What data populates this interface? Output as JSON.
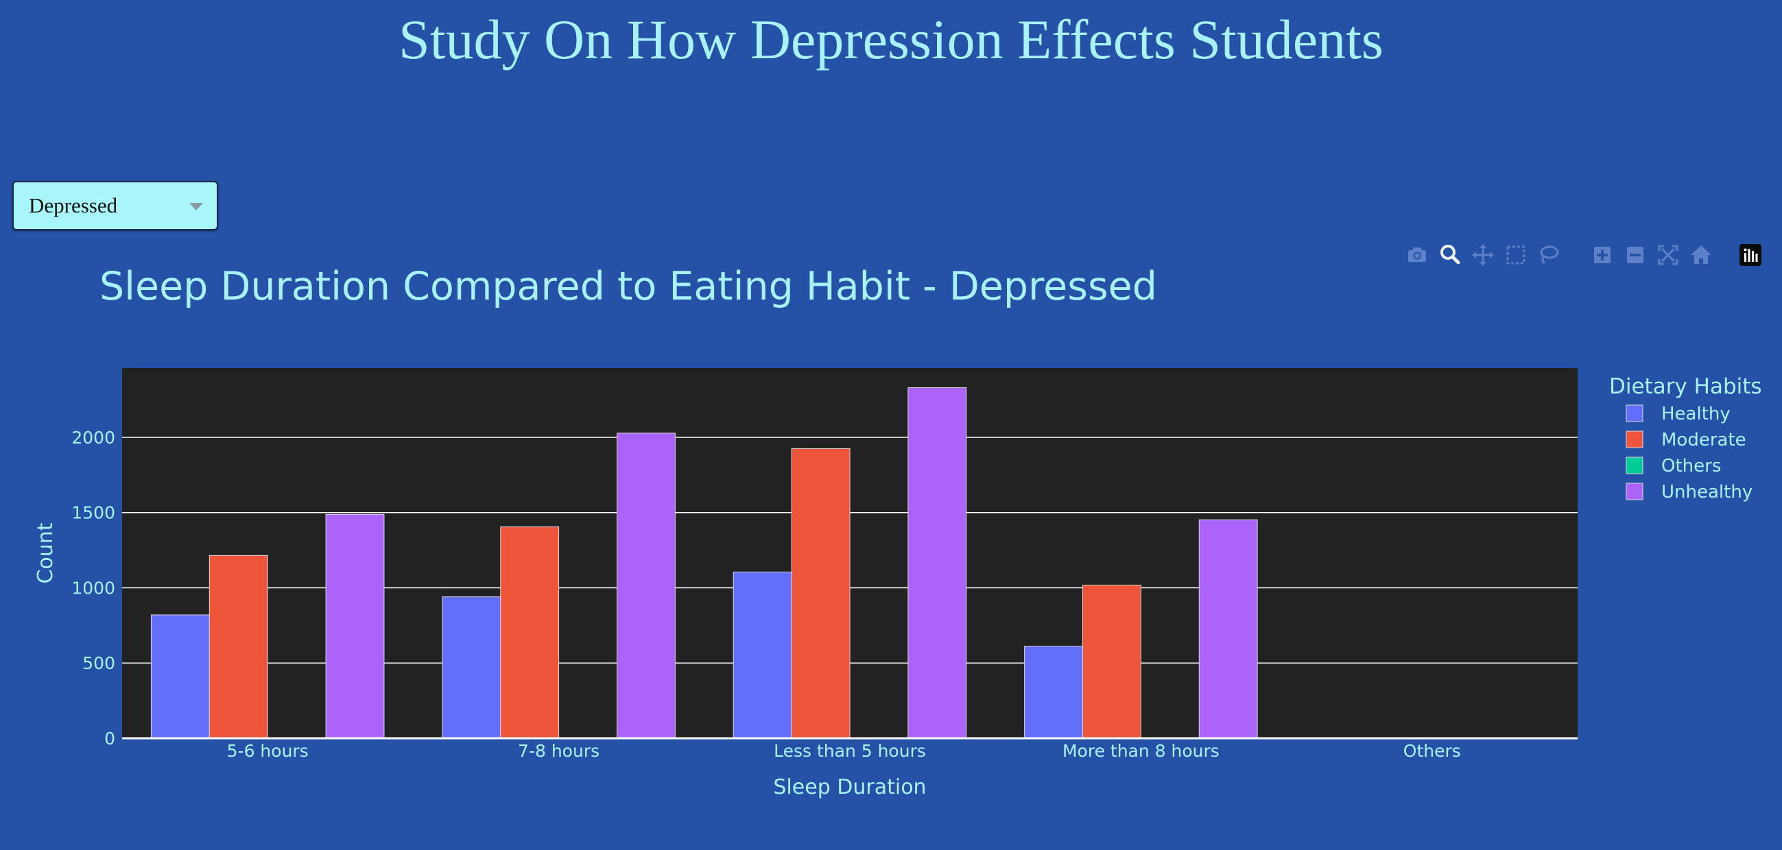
{
  "page": {
    "title": "Study On How Depression Effects Students"
  },
  "dropdown": {
    "selected": "Depressed"
  },
  "modebar": {
    "buttons": [
      {
        "name": "camera-icon"
      },
      {
        "name": "zoom-icon"
      },
      {
        "name": "pan-icon"
      },
      {
        "name": "box-select-icon"
      },
      {
        "name": "lasso-select-icon"
      },
      {
        "name": "zoom-in-icon"
      },
      {
        "name": "zoom-out-icon"
      },
      {
        "name": "autoscale-icon"
      },
      {
        "name": "reset-axes-icon"
      },
      {
        "name": "plotly-logo-icon"
      }
    ]
  },
  "colors": {
    "background": "#2552a7",
    "plot_background": "#222222",
    "text": "#a8f2fb",
    "grid": "#ffffff"
  },
  "chart_data": {
    "type": "bar",
    "title": "Sleep Duration Compared to Eating Habit - Depressed",
    "xlabel": "Sleep Duration",
    "ylabel": "Count",
    "categories": [
      "5-6 hours",
      "7-8 hours",
      "Less than 5 hours",
      "More than 8 hours",
      "Others"
    ],
    "ylim": [
      0,
      2460
    ],
    "yticks": [
      0,
      500,
      1000,
      1500,
      2000
    ],
    "grid": true,
    "legend_title": "Dietary Habits",
    "legend_position": "right",
    "series": [
      {
        "name": "Healthy",
        "color": "#636efa",
        "values": [
          820,
          940,
          1105,
          612,
          0
        ]
      },
      {
        "name": "Moderate",
        "color": "#ef553b",
        "values": [
          1215,
          1405,
          1925,
          1018,
          0
        ]
      },
      {
        "name": "Others",
        "color": "#00cc96",
        "values": [
          0,
          0,
          0,
          0,
          0
        ]
      },
      {
        "name": "Unhealthy",
        "color": "#ab63fa",
        "values": [
          1488,
          2028,
          2330,
          1452,
          0
        ]
      }
    ]
  }
}
